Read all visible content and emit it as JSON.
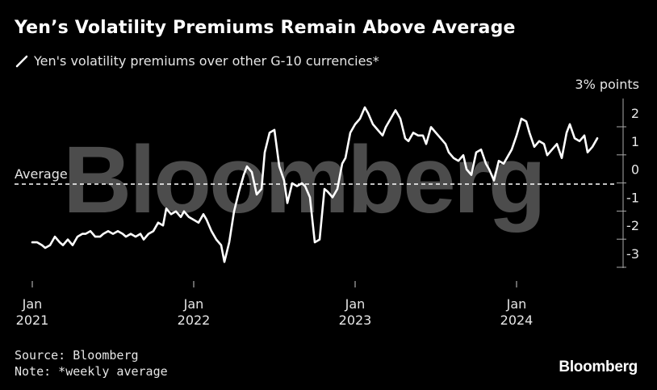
{
  "title": "Yen’s Volatility Premiums Remain Above Average",
  "legend_label": "Yen's volatility premiums over other G-10 currencies*",
  "watermark": "Bloomberg",
  "footer": {
    "source": "Source: Bloomberg",
    "note": "Note: *weekly average"
  },
  "brand": "Bloomberg",
  "colors": {
    "background": "#000000",
    "line": "#ffffff",
    "text": "#e6e6e6",
    "watermark": "#5a5a5a"
  },
  "chart_data": {
    "type": "line",
    "title": "Yen’s Volatility Premiums Remain Above Average",
    "ylabel": "% points",
    "xlabel": "",
    "ylim": [
      -3.5,
      2.5
    ],
    "y_ticks": [
      2,
      1,
      0,
      -1,
      -2,
      -3
    ],
    "y_top_label": "3% points",
    "average_label": "Average",
    "average_value": -0.5,
    "x_ticks": [
      {
        "month": "Jan",
        "year": "2021",
        "t": 2021.0
      },
      {
        "month": "Jan",
        "year": "2022",
        "t": 2022.0
      },
      {
        "month": "Jan",
        "year": "2023",
        "t": 2023.0
      },
      {
        "month": "Jan",
        "year": "2024",
        "t": 2024.0
      }
    ],
    "xlim": [
      2021.0,
      2024.5
    ],
    "series": [
      {
        "name": "Yen's volatility premiums over other G-10 currencies*",
        "x": [
          2021.0,
          2021.03,
          2021.06,
          2021.08,
          2021.11,
          2021.14,
          2021.17,
          2021.19,
          2021.22,
          2021.25,
          2021.28,
          2021.31,
          2021.33,
          2021.36,
          2021.39,
          2021.42,
          2021.44,
          2021.47,
          2021.5,
          2021.53,
          2021.56,
          2021.58,
          2021.61,
          2021.64,
          2021.67,
          2021.69,
          2021.72,
          2021.75,
          2021.78,
          2021.81,
          2021.83,
          2021.86,
          2021.89,
          2021.92,
          2021.94,
          2021.97,
          2022.0,
          2022.03,
          2022.06,
          2022.08,
          2022.11,
          2022.14,
          2022.17,
          2022.19,
          2022.22,
          2022.25,
          2022.28,
          2022.31,
          2022.33,
          2022.36,
          2022.39,
          2022.42,
          2022.44,
          2022.47,
          2022.5,
          2022.53,
          2022.56,
          2022.58,
          2022.61,
          2022.64,
          2022.67,
          2022.69,
          2022.72,
          2022.75,
          2022.78,
          2022.81,
          2022.83,
          2022.86,
          2022.89,
          2022.92,
          2022.94,
          2022.97,
          2023.0,
          2023.03,
          2023.06,
          2023.08,
          2023.11,
          2023.14,
          2023.17,
          2023.19,
          2023.22,
          2023.25,
          2023.28,
          2023.31,
          2023.33,
          2023.36,
          2023.39,
          2023.42,
          2023.44,
          2023.47,
          2023.5,
          2023.53,
          2023.56,
          2023.58,
          2023.61,
          2023.64,
          2023.67,
          2023.69,
          2023.72,
          2023.75,
          2023.78,
          2023.81,
          2023.83,
          2023.86,
          2023.89,
          2023.92,
          2023.94,
          2023.97,
          2024.0,
          2024.03,
          2024.06,
          2024.08,
          2024.11,
          2024.14,
          2024.17,
          2024.19,
          2024.22,
          2024.25,
          2024.28,
          2024.31,
          2024.33,
          2024.36,
          2024.39,
          2024.42,
          2024.44,
          2024.47,
          2024.5
        ],
        "values": [
          -2.6,
          -2.6,
          -2.7,
          -2.8,
          -2.7,
          -2.4,
          -2.6,
          -2.7,
          -2.5,
          -2.7,
          -2.4,
          -2.3,
          -2.3,
          -2.2,
          -2.4,
          -2.4,
          -2.3,
          -2.2,
          -2.3,
          -2.2,
          -2.3,
          -2.4,
          -2.3,
          -2.4,
          -2.3,
          -2.5,
          -2.3,
          -2.2,
          -1.9,
          -2.0,
          -1.4,
          -1.6,
          -1.5,
          -1.7,
          -1.5,
          -1.7,
          -1.8,
          -1.9,
          -1.6,
          -1.8,
          -2.2,
          -2.5,
          -2.7,
          -3.3,
          -2.6,
          -1.5,
          -0.8,
          -0.2,
          0.1,
          -0.1,
          -0.9,
          -0.7,
          0.6,
          1.3,
          1.4,
          0.1,
          -0.4,
          -1.2,
          -0.5,
          -0.6,
          -0.5,
          -0.6,
          -1.0,
          -2.6,
          -2.5,
          -0.7,
          -0.8,
          -1.0,
          -0.7,
          0.2,
          0.4,
          1.3,
          1.6,
          1.8,
          2.2,
          2.0,
          1.6,
          1.4,
          1.2,
          1.5,
          1.8,
          2.1,
          1.8,
          1.1,
          1.0,
          1.3,
          1.2,
          1.2,
          0.9,
          1.5,
          1.3,
          1.1,
          0.9,
          0.6,
          0.4,
          0.3,
          0.5,
          0.0,
          -0.2,
          0.6,
          0.7,
          0.2,
          0.0,
          -0.4,
          0.3,
          0.2,
          0.4,
          0.7,
          1.2,
          1.8,
          1.7,
          1.3,
          0.8,
          1.0,
          0.9,
          0.5,
          0.7,
          0.9,
          0.4,
          1.3,
          1.6,
          1.1,
          1.0,
          1.2,
          0.6,
          0.8,
          1.1
        ]
      }
    ]
  }
}
